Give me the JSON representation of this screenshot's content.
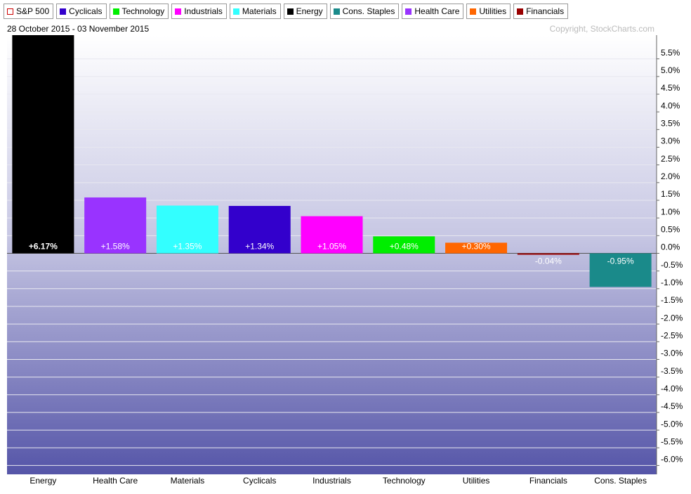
{
  "chart_data": {
    "type": "bar",
    "legend": [
      {
        "name": "S&P 500",
        "color": "#cc0000",
        "style": "outline"
      },
      {
        "name": "Cyclicals",
        "color": "#3300cc"
      },
      {
        "name": "Technology",
        "color": "#00ee00"
      },
      {
        "name": "Industrials",
        "color": "#ff00ff"
      },
      {
        "name": "Materials",
        "color": "#33ffff"
      },
      {
        "name": "Energy",
        "color": "#000000"
      },
      {
        "name": "Cons. Staples",
        "color": "#1a8a8a"
      },
      {
        "name": "Health Care",
        "color": "#9933ff"
      },
      {
        "name": "Utilities",
        "color": "#ff6600"
      },
      {
        "name": "Financials",
        "color": "#990000"
      }
    ],
    "subtitle": "28 October 2015 - 03 November 2015",
    "annotation": "Copyright, StockCharts.com",
    "categories": [
      "Energy",
      "Health Care",
      "Materials",
      "Cyclicals",
      "Industrials",
      "Technology",
      "Utilities",
      "Financials",
      "Cons. Staples"
    ],
    "values": [
      6.17,
      1.58,
      1.35,
      1.34,
      1.05,
      0.48,
      0.3,
      -0.04,
      -0.95
    ],
    "value_labels": [
      "+6.17%",
      "+1.58%",
      "+1.35%",
      "+1.34%",
      "+1.05%",
      "+0.48%",
      "+0.30%",
      "-0.04%",
      "-0.95%"
    ],
    "colors": [
      "#000000",
      "#9933ff",
      "#33ffff",
      "#3300cc",
      "#ff00ff",
      "#00ee00",
      "#ff6600",
      "#990000",
      "#1a8a8a"
    ],
    "ylim": [
      -6.25,
      6.17
    ],
    "yticks": [
      {
        "value": -6.0,
        "label": "-6.0%"
      },
      {
        "value": -5.5,
        "label": "-5.5%"
      },
      {
        "value": -5.0,
        "label": "-5.0%"
      },
      {
        "value": -4.5,
        "label": "-4.5%"
      },
      {
        "value": -4.0,
        "label": "-4.0%"
      },
      {
        "value": -3.5,
        "label": "-3.5%"
      },
      {
        "value": -3.0,
        "label": "-3.0%"
      },
      {
        "value": -2.5,
        "label": "-2.5%"
      },
      {
        "value": -2.0,
        "label": "-2.0%"
      },
      {
        "value": -1.5,
        "label": "-1.5%"
      },
      {
        "value": -1.0,
        "label": "-1.0%"
      },
      {
        "value": -0.5,
        "label": "-0.5%"
      },
      {
        "value": 0.0,
        "label": "0.0%"
      },
      {
        "value": 0.5,
        "label": "0.5%"
      },
      {
        "value": 1.0,
        "label": "1.0%"
      },
      {
        "value": 1.5,
        "label": "1.5%"
      },
      {
        "value": 2.0,
        "label": "2.0%"
      },
      {
        "value": 2.5,
        "label": "2.5%"
      },
      {
        "value": 3.0,
        "label": "3.0%"
      },
      {
        "value": 3.5,
        "label": "3.5%"
      },
      {
        "value": 4.0,
        "label": "4.0%"
      },
      {
        "value": 4.5,
        "label": "4.5%"
      },
      {
        "value": 5.0,
        "label": "5.0%"
      },
      {
        "value": 5.5,
        "label": "5.5%"
      }
    ],
    "grid": true
  }
}
